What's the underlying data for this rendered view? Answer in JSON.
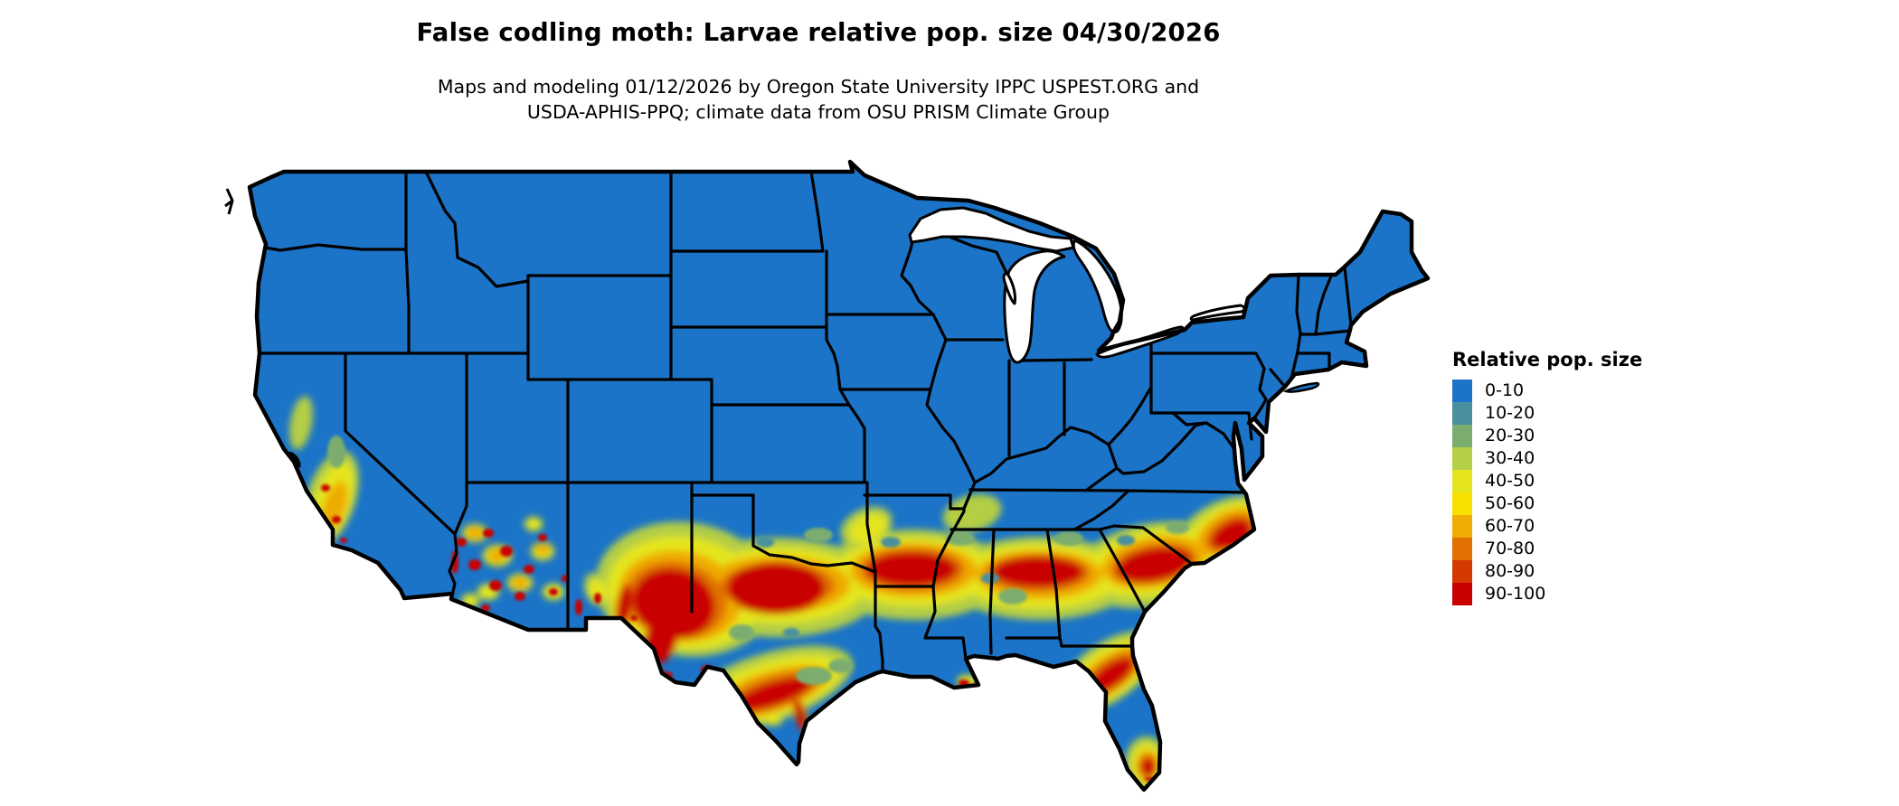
{
  "header": {
    "title": "False codling moth: Larvae relative pop. size 04/30/2026",
    "subtitle_line1": "Maps and modeling 01/12/2026 by Oregon State University IPPC USPEST.ORG and",
    "subtitle_line2": "USDA-APHIS-PPQ; climate data from OSU PRISM Climate Group"
  },
  "legend": {
    "title": "Relative pop. size",
    "items": [
      {
        "label": "0-10",
        "color": "#1B74C8"
      },
      {
        "label": "10-20",
        "color": "#4A8F9E"
      },
      {
        "label": "20-30",
        "color": "#7BAD6E"
      },
      {
        "label": "30-40",
        "color": "#B4CE45"
      },
      {
        "label": "40-50",
        "color": "#E4E51F"
      },
      {
        "label": "50-60",
        "color": "#F8E000"
      },
      {
        "label": "60-70",
        "color": "#EFAC04"
      },
      {
        "label": "70-80",
        "color": "#E07100"
      },
      {
        "label": "80-90",
        "color": "#D43A00"
      },
      {
        "label": "90-100",
        "color": "#C90000"
      }
    ]
  },
  "map": {
    "region": "Contiguous United States",
    "kind": "raster relative-population map with state borders",
    "base_color": "#1B74C8",
    "state_border_color": "#000000",
    "water_background": "#FFFFFF",
    "high_population_areas": [
      "Central Valley of California",
      "central and southern Arizona",
      "southern New Mexico / Rio Grande valley",
      "band from west Texas across the Gulf states to the Carolinas coast",
      "south Texas Gulf Coast",
      "north-central Florida",
      "southern tip of Florida"
    ]
  }
}
